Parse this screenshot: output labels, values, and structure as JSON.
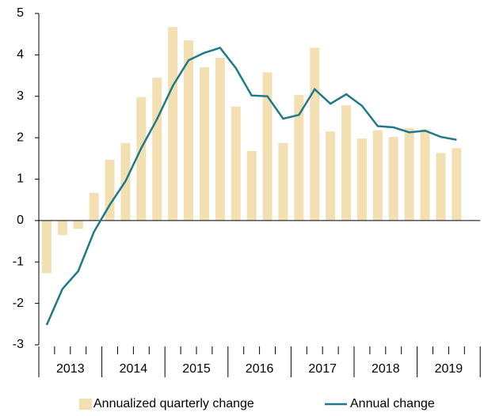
{
  "chart_data": {
    "type": "bar_line",
    "years": [
      "2013",
      "2014",
      "2015",
      "2016",
      "2017",
      "2018",
      "2019"
    ],
    "series": [
      {
        "name": "Annualized quarterly change",
        "type": "bar",
        "color": "#f2dfb2",
        "values": [
          -1.27,
          -0.35,
          -0.2,
          0.67,
          1.47,
          1.87,
          2.98,
          3.45,
          4.67,
          4.35,
          3.7,
          3.93,
          2.75,
          1.68,
          3.58,
          1.87,
          3.03,
          4.17,
          2.15,
          2.78,
          1.98,
          2.18,
          2.02,
          2.23,
          2.2,
          1.63,
          1.75
        ]
      },
      {
        "name": "Annual change",
        "type": "line",
        "color": "#1f7a87",
        "values": [
          -2.52,
          -1.65,
          -1.22,
          -0.27,
          0.38,
          0.95,
          1.75,
          2.45,
          3.25,
          3.87,
          4.05,
          4.17,
          3.68,
          3.02,
          3.0,
          2.46,
          2.55,
          3.17,
          2.82,
          3.05,
          2.77,
          2.28,
          2.25,
          2.13,
          2.17,
          2.02,
          1.95
        ]
      }
    ],
    "ylim": [
      -3,
      5
    ],
    "yticks": [
      -3,
      -2,
      -1,
      0,
      1,
      2,
      3,
      4,
      5
    ]
  }
}
